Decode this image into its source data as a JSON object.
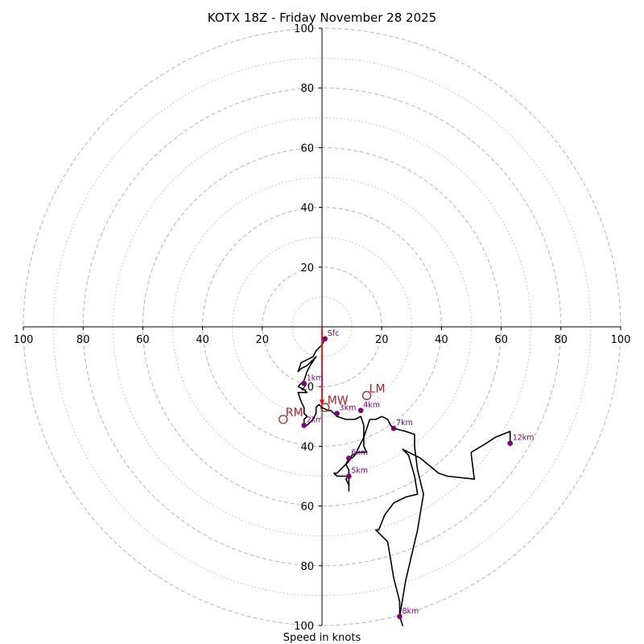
{
  "chart_data": {
    "type": "hodograph",
    "title": "KOTX 18Z - Friday November 28 2025",
    "xlabel": "Speed in knots",
    "range": 100,
    "rings_major": [
      20,
      40,
      60,
      80,
      100
    ],
    "rings_minor": [
      10,
      30,
      50,
      70,
      90
    ],
    "x_tick_labels": [
      "100",
      "80",
      "60",
      "40",
      "20",
      "20",
      "40",
      "60",
      "80",
      "100"
    ],
    "y_tick_labels": [
      "20",
      "40",
      "60",
      "80",
      "100"
    ],
    "y_tick_labels_lower": [
      "20",
      "40",
      "60",
      "80",
      "100"
    ],
    "hodograph": {
      "color": "#000000",
      "points": [
        [
          1,
          -4
        ],
        [
          0,
          -6
        ],
        [
          -2,
          -8
        ],
        [
          -3,
          -10
        ],
        [
          -5,
          -11
        ],
        [
          -7,
          -12
        ],
        [
          -8,
          -15
        ],
        [
          -7,
          -14
        ],
        [
          -5,
          -13
        ],
        [
          -4,
          -12
        ],
        [
          -2,
          -10
        ],
        [
          -4,
          -13
        ],
        [
          -5,
          -15
        ],
        [
          -6,
          -18
        ],
        [
          -7,
          -19
        ],
        [
          -8,
          -20
        ],
        [
          -6,
          -21
        ],
        [
          -5,
          -22
        ],
        [
          -6,
          -22
        ],
        [
          -8,
          -22
        ],
        [
          -7,
          -25
        ],
        [
          -6,
          -27
        ],
        [
          -6,
          -29
        ],
        [
          -5,
          -30
        ],
        [
          -6,
          -31
        ],
        [
          -6,
          -33
        ],
        [
          -5,
          -33
        ],
        [
          -4,
          -32
        ],
        [
          -3,
          -31
        ],
        [
          -2,
          -29
        ],
        [
          -2,
          -27
        ],
        [
          -1,
          -26
        ],
        [
          0,
          -27
        ],
        [
          2,
          -28
        ],
        [
          3,
          -28
        ],
        [
          5,
          -30
        ],
        [
          8,
          -31
        ],
        [
          11,
          -31
        ],
        [
          13,
          -30
        ],
        [
          14,
          -33
        ],
        [
          14,
          -40
        ],
        [
          15,
          -42
        ],
        [
          13,
          -42
        ],
        [
          12,
          -42
        ],
        [
          10,
          -43
        ],
        [
          9,
          -45
        ],
        [
          8,
          -46
        ],
        [
          6,
          -48
        ],
        [
          5,
          -49
        ],
        [
          4,
          -49
        ],
        [
          5,
          -50
        ],
        [
          7,
          -50
        ],
        [
          9,
          -50
        ],
        [
          8,
          -51
        ],
        [
          9,
          -53
        ],
        [
          9,
          -55
        ],
        [
          9,
          -52
        ],
        [
          9,
          -50
        ],
        [
          9,
          -48
        ],
        [
          8,
          -46
        ],
        [
          9,
          -44
        ],
        [
          10,
          -44
        ],
        [
          11,
          -43
        ],
        [
          12,
          -41
        ],
        [
          13,
          -39
        ],
        [
          14,
          -37
        ],
        [
          15,
          -34
        ],
        [
          16,
          -31
        ],
        [
          18,
          -31
        ],
        [
          20,
          -30
        ],
        [
          22,
          -31
        ],
        [
          23,
          -33
        ],
        [
          24,
          -34
        ],
        [
          28,
          -35
        ],
        [
          31,
          -36
        ],
        [
          31,
          -40
        ],
        [
          32,
          -48
        ],
        [
          34,
          -56
        ],
        [
          32,
          -68
        ],
        [
          28,
          -85
        ],
        [
          26,
          -97
        ],
        [
          27,
          -100
        ],
        [
          26,
          -97
        ],
        [
          26,
          -95
        ],
        [
          26,
          -92
        ],
        [
          24,
          -84
        ],
        [
          22,
          -72
        ],
        [
          18,
          -68
        ],
        [
          19,
          -68
        ],
        [
          21,
          -63
        ],
        [
          24,
          -59
        ],
        [
          26,
          -58
        ],
        [
          28,
          -57
        ],
        [
          32,
          -56
        ],
        [
          31,
          -50
        ],
        [
          29,
          -43
        ],
        [
          27,
          -41
        ],
        [
          33,
          -44
        ],
        [
          39,
          -49
        ],
        [
          42,
          -50
        ],
        [
          51,
          -51
        ],
        [
          50,
          -43
        ],
        [
          50,
          -42
        ],
        [
          55,
          -39
        ],
        [
          58,
          -37
        ],
        [
          63,
          -35
        ],
        [
          63,
          -37
        ],
        [
          63,
          -39
        ]
      ]
    },
    "storm_vector": {
      "color": "#ff0000",
      "from": [
        0,
        0
      ],
      "to": [
        0,
        -26
      ]
    },
    "height_markers": [
      {
        "label": "Sfc",
        "u": 1,
        "v": -4
      },
      {
        "label": "1km",
        "u": -6,
        "v": -19
      },
      {
        "label": "2km",
        "u": -6,
        "v": -33
      },
      {
        "label": "3km",
        "u": 5,
        "v": -29
      },
      {
        "label": "4km",
        "u": 13,
        "v": -28
      },
      {
        "label": "5km",
        "u": 9,
        "v": -50
      },
      {
        "label": "6km",
        "u": 9,
        "v": -44
      },
      {
        "label": "7km",
        "u": 24,
        "v": -34
      },
      {
        "label": "8km",
        "u": 26,
        "v": -97
      },
      {
        "label": "12km",
        "u": 63,
        "v": -39
      }
    ],
    "storm_motion_markers": [
      {
        "label": "RM",
        "u": -13,
        "v": -31
      },
      {
        "label": "LM",
        "u": 15,
        "v": -23
      },
      {
        "label": "MW",
        "u": 1,
        "v": -27
      }
    ],
    "colors": {
      "hodograph": "#000000",
      "storm_vector": "#ff0000",
      "height_marker": "#800080",
      "storm_motion": "#b22222",
      "grid": "#bbbbbb",
      "axis": "#000000"
    }
  }
}
